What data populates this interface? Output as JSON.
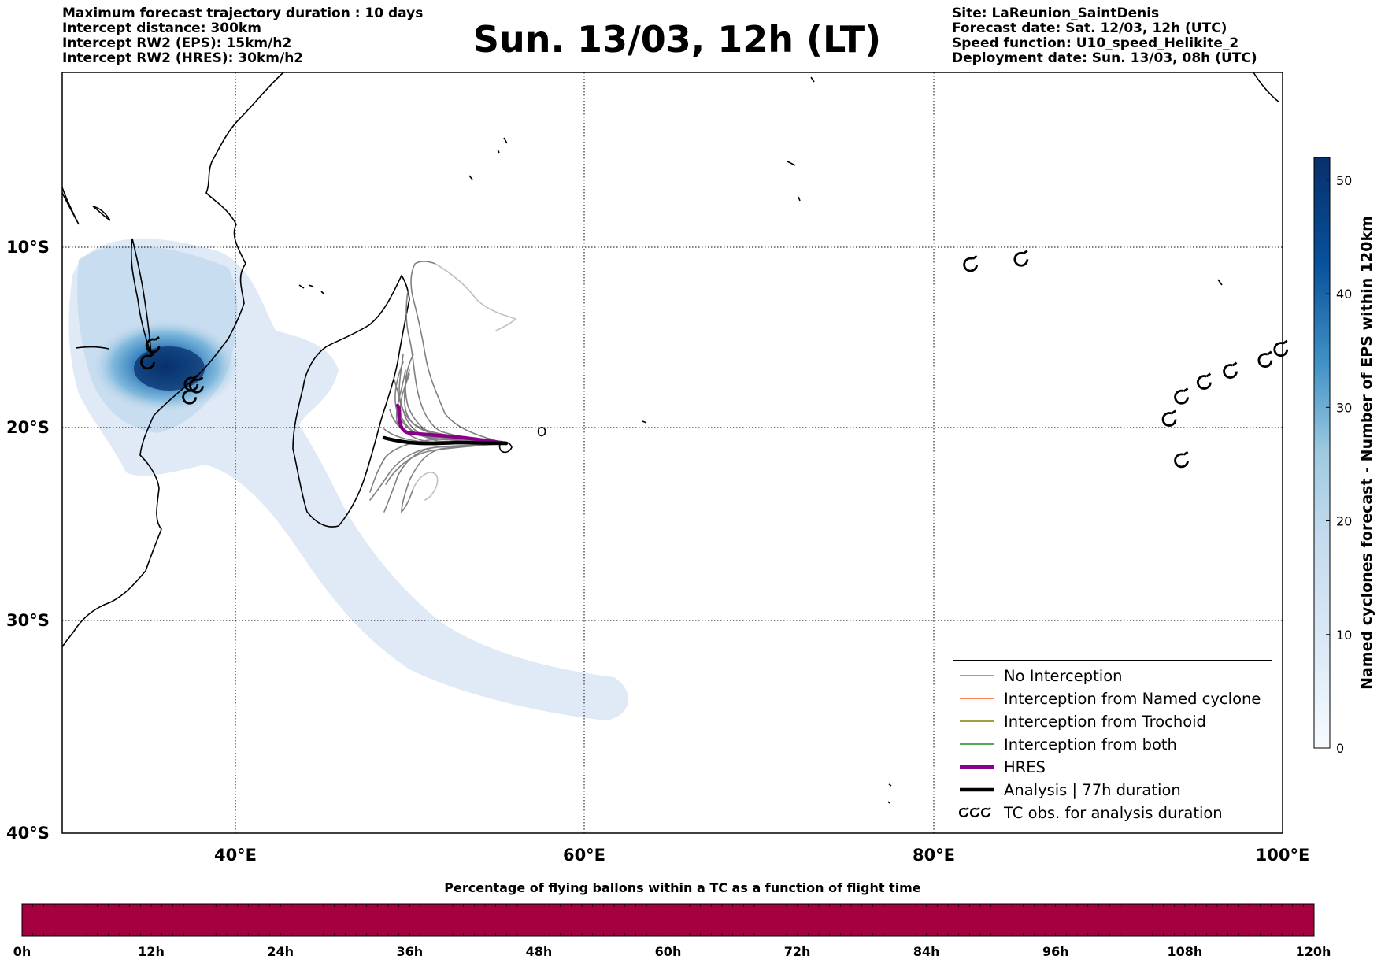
{
  "header": {
    "left_lines": [
      "Maximum forecast trajectory duration : 10 days",
      "Intercept distance: 300km",
      "Intercept RW2 (EPS):  15km/h2",
      "Intercept RW2 (HRES): 30km/h2"
    ],
    "title": "Sun. 13/03, 12h (LT)",
    "right_lines": [
      "Site: LaReunion_SaintDenis",
      "Forecast date: Sat. 12/03, 12h (UTC)",
      "Speed function: U10_speed_Helikite_2",
      "Deployment date: Sun. 13/03, 08h (UTC)"
    ]
  },
  "map": {
    "lat_labels": [
      "10°S",
      "20°S",
      "30°S",
      "40°S"
    ],
    "lon_labels": [
      "40°E",
      "60°E",
      "80°E",
      "100°E"
    ],
    "extent": {
      "lon_min": 30,
      "lon_max": 100,
      "lat_min": -40,
      "lat_max": -0.3
    }
  },
  "colorbar": {
    "label": "Named cyclones forecast - Number of EPS within 120km",
    "ticks": [
      "0",
      "10",
      "20",
      "30",
      "40",
      "50"
    ],
    "range": [
      0,
      52
    ],
    "colors": [
      "#f7fbff",
      "#deebf7",
      "#9ecae1",
      "#4292c6",
      "#08519c",
      "#08306b"
    ]
  },
  "legend": {
    "items": [
      {
        "label": "No Interception",
        "color": "#808080",
        "style": "thin"
      },
      {
        "label": "Interception from Named cyclone",
        "color": "#ff5a14",
        "style": "thin"
      },
      {
        "label": "Interception from Trochoid",
        "color": "#808000",
        "style": "thin"
      },
      {
        "label": "Interception from both",
        "color": "#228b22",
        "style": "thin"
      },
      {
        "label": "HRES",
        "color": "#8b008b",
        "style": "thick"
      },
      {
        "label": "Analysis | 77h duration",
        "color": "#000000",
        "style": "thick"
      },
      {
        "label": "TC obs. for analysis duration",
        "color": "#000000",
        "style": "cyclone"
      }
    ]
  },
  "flight_bar": {
    "title": "Percentage of flying ballons within a TC as a function of flight time",
    "ticks": [
      "0h",
      "12h",
      "24h",
      "36h",
      "48h",
      "60h",
      "72h",
      "84h",
      "96h",
      "108h",
      "120h"
    ],
    "color": "#a50040"
  },
  "tc_observations": [
    {
      "lon": 82.1,
      "lat": -11.2
    },
    {
      "lon": 85.0,
      "lat": -10.9
    },
    {
      "lon": 93.5,
      "lat": -19.7
    },
    {
      "lon": 94.2,
      "lat": -18.5
    },
    {
      "lon": 95.5,
      "lat": -17.7
    },
    {
      "lon": 97.0,
      "lat": -17.1
    },
    {
      "lon": 99.0,
      "lat": -16.5
    },
    {
      "lon": 99.9,
      "lat": -15.9
    },
    {
      "lon": 94.2,
      "lat": -21.9
    },
    {
      "lon": 35.2,
      "lat": -15.7
    },
    {
      "lon": 34.9,
      "lat": -16.6
    },
    {
      "lon": 37.4,
      "lat": -17.8
    },
    {
      "lon": 37.7,
      "lat": -17.9
    },
    {
      "lon": 37.3,
      "lat": -18.5
    }
  ]
}
